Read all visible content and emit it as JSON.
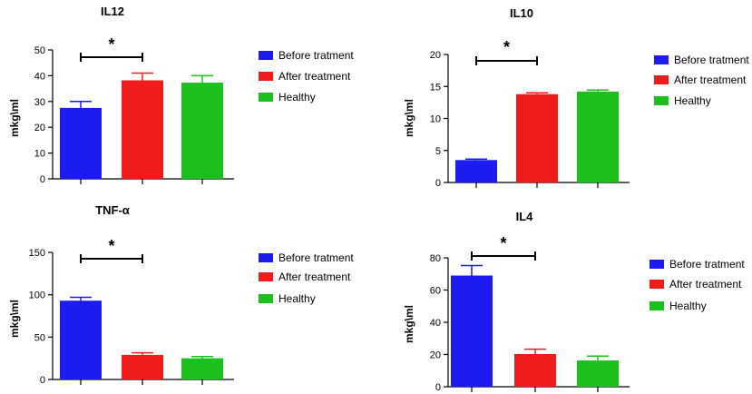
{
  "chart_data": [
    {
      "type": "bar",
      "title": "IL12",
      "ylabel": "mkg\\ml",
      "xlabel": "",
      "ylim": [
        0,
        50
      ],
      "yticks": [
        0,
        10,
        20,
        30,
        40,
        50
      ],
      "categories": [
        "Before tratment",
        "After treatment",
        "Healthy"
      ],
      "values": [
        27.5,
        38.2,
        37.3
      ],
      "errors": [
        2.5,
        2.8,
        2.7
      ],
      "colors": [
        "#1c1cf0",
        "#f01c1c",
        "#1cc01c"
      ],
      "significance": {
        "label": "*",
        "between": [
          0,
          1
        ]
      },
      "legend": [
        "Before tratment",
        "After treatment",
        "Healthy"
      ]
    },
    {
      "type": "bar",
      "title": "IL10",
      "ylabel": "mkg\\ml",
      "xlabel": "",
      "ylim": [
        0,
        20
      ],
      "yticks": [
        0,
        5,
        10,
        15,
        20
      ],
      "categories": [
        "Before tratment",
        "After treatment",
        "Healthy"
      ],
      "values": [
        3.5,
        13.8,
        14.2
      ],
      "errors": [
        0.15,
        0.2,
        0.25
      ],
      "colors": [
        "#1c1cf0",
        "#f01c1c",
        "#1cc01c"
      ],
      "significance": {
        "label": "*",
        "between": [
          0,
          1
        ]
      },
      "legend": [
        "Before tratment",
        "After treatment",
        "Healthy"
      ]
    },
    {
      "type": "bar",
      "title": "TNF-α",
      "ylabel": "mkg\\ml",
      "xlabel": "",
      "ylim": [
        0,
        150
      ],
      "yticks": [
        0,
        50,
        100,
        150
      ],
      "categories": [
        "Before tratment",
        "After treatment",
        "Healthy"
      ],
      "values": [
        93,
        29,
        25
      ],
      "errors": [
        4,
        2.5,
        2
      ],
      "colors": [
        "#1c1cf0",
        "#f01c1c",
        "#1cc01c"
      ],
      "significance": {
        "label": "*",
        "between": [
          0,
          1
        ]
      },
      "legend": [
        "Before tratment",
        "After treatment",
        "Healthy"
      ]
    },
    {
      "type": "bar",
      "title": "IL4",
      "ylabel": "mkg\\ml",
      "xlabel": "",
      "ylim": [
        0,
        80
      ],
      "yticks": [
        0,
        20,
        40,
        60,
        80
      ],
      "categories": [
        "Before tratment",
        "After treatment",
        "Healthy"
      ],
      "values": [
        69,
        20.3,
        16.3
      ],
      "errors": [
        6.2,
        3,
        2.7
      ],
      "colors": [
        "#1c1cf0",
        "#f01c1c",
        "#1cc01c"
      ],
      "significance": {
        "label": "*",
        "between": [
          0,
          1
        ]
      },
      "legend": [
        "Before tratment",
        "After treatment",
        "Healthy"
      ]
    }
  ]
}
